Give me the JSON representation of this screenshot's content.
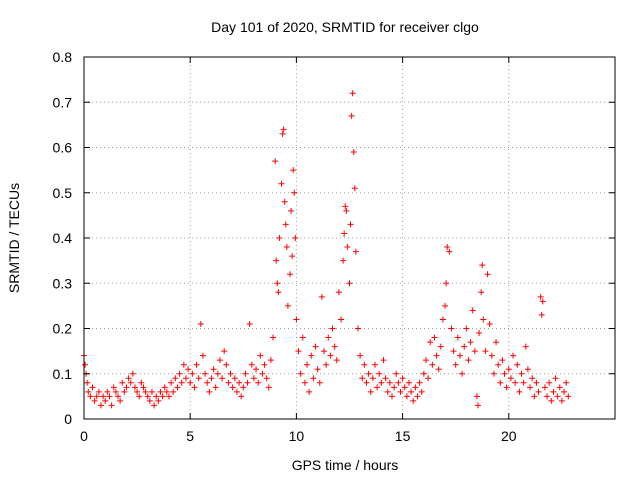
{
  "chart_data": {
    "type": "scatter",
    "title": "Day 101 of 2020, SRMTID for receiver clgo",
    "xlabel": "GPS time / hours",
    "ylabel": "SRMTID / TECUs",
    "xlim": [
      0,
      25
    ],
    "ylim": [
      0,
      0.8
    ],
    "xticks": [
      0,
      5,
      10,
      15,
      20
    ],
    "yticks": [
      0,
      0.1,
      0.2,
      0.3,
      0.4,
      0.5,
      0.6,
      0.7,
      0.8
    ],
    "grid": true,
    "marker": "+",
    "marker_color": "#ff0000",
    "series": [
      {
        "name": "SRMTID",
        "points": [
          [
            0.0,
            0.14
          ],
          [
            0.05,
            0.12
          ],
          [
            0.1,
            0.1
          ],
          [
            0.15,
            0.08
          ],
          [
            0.2,
            0.06
          ],
          [
            0.3,
            0.05
          ],
          [
            0.4,
            0.07
          ],
          [
            0.5,
            0.04
          ],
          [
            0.6,
            0.05
          ],
          [
            0.7,
            0.06
          ],
          [
            0.8,
            0.03
          ],
          [
            0.9,
            0.05
          ],
          [
            1.0,
            0.04
          ],
          [
            1.1,
            0.06
          ],
          [
            1.2,
            0.05
          ],
          [
            1.3,
            0.03
          ],
          [
            1.4,
            0.07
          ],
          [
            1.5,
            0.06
          ],
          [
            1.6,
            0.05
          ],
          [
            1.7,
            0.04
          ],
          [
            1.8,
            0.08
          ],
          [
            1.9,
            0.06
          ],
          [
            2.0,
            0.07
          ],
          [
            2.1,
            0.09
          ],
          [
            2.2,
            0.08
          ],
          [
            2.3,
            0.1
          ],
          [
            2.4,
            0.07
          ],
          [
            2.5,
            0.06
          ],
          [
            2.6,
            0.05
          ],
          [
            2.7,
            0.08
          ],
          [
            2.8,
            0.07
          ],
          [
            2.9,
            0.06
          ],
          [
            3.0,
            0.05
          ],
          [
            3.1,
            0.04
          ],
          [
            3.2,
            0.06
          ],
          [
            3.3,
            0.03
          ],
          [
            3.4,
            0.05
          ],
          [
            3.5,
            0.04
          ],
          [
            3.6,
            0.06
          ],
          [
            3.7,
            0.05
          ],
          [
            3.8,
            0.07
          ],
          [
            3.9,
            0.06
          ],
          [
            4.0,
            0.05
          ],
          [
            4.1,
            0.08
          ],
          [
            4.2,
            0.06
          ],
          [
            4.3,
            0.09
          ],
          [
            4.4,
            0.07
          ],
          [
            4.5,
            0.1
          ],
          [
            4.6,
            0.08
          ],
          [
            4.7,
            0.12
          ],
          [
            4.8,
            0.09
          ],
          [
            4.9,
            0.11
          ],
          [
            5.0,
            0.08
          ],
          [
            5.1,
            0.1
          ],
          [
            5.2,
            0.07
          ],
          [
            5.3,
            0.12
          ],
          [
            5.4,
            0.09
          ],
          [
            5.5,
            0.21
          ],
          [
            5.6,
            0.14
          ],
          [
            5.7,
            0.1
          ],
          [
            5.8,
            0.08
          ],
          [
            5.9,
            0.06
          ],
          [
            6.0,
            0.09
          ],
          [
            6.1,
            0.11
          ],
          [
            6.2,
            0.07
          ],
          [
            6.3,
            0.1
          ],
          [
            6.4,
            0.13
          ],
          [
            6.5,
            0.09
          ],
          [
            6.6,
            0.15
          ],
          [
            6.7,
            0.12
          ],
          [
            6.8,
            0.08
          ],
          [
            6.9,
            0.1
          ],
          [
            7.0,
            0.07
          ],
          [
            7.1,
            0.09
          ],
          [
            7.2,
            0.06
          ],
          [
            7.3,
            0.08
          ],
          [
            7.4,
            0.05
          ],
          [
            7.5,
            0.07
          ],
          [
            7.6,
            0.1
          ],
          [
            7.7,
            0.08
          ],
          [
            7.8,
            0.21
          ],
          [
            7.9,
            0.12
          ],
          [
            8.0,
            0.09
          ],
          [
            8.1,
            0.11
          ],
          [
            8.2,
            0.08
          ],
          [
            8.3,
            0.14
          ],
          [
            8.4,
            0.1
          ],
          [
            8.5,
            0.12
          ],
          [
            8.6,
            0.09
          ],
          [
            8.7,
            0.07
          ],
          [
            8.8,
            0.13
          ],
          [
            8.9,
            0.18
          ],
          [
            9.0,
            0.57
          ],
          [
            9.05,
            0.35
          ],
          [
            9.1,
            0.3
          ],
          [
            9.15,
            0.28
          ],
          [
            9.2,
            0.4
          ],
          [
            9.3,
            0.52
          ],
          [
            9.35,
            0.63
          ],
          [
            9.4,
            0.64
          ],
          [
            9.45,
            0.48
          ],
          [
            9.5,
            0.43
          ],
          [
            9.55,
            0.38
          ],
          [
            9.6,
            0.25
          ],
          [
            9.7,
            0.32
          ],
          [
            9.75,
            0.46
          ],
          [
            9.8,
            0.36
          ],
          [
            9.85,
            0.55
          ],
          [
            9.9,
            0.5
          ],
          [
            9.95,
            0.4
          ],
          [
            10.0,
            0.22
          ],
          [
            10.1,
            0.15
          ],
          [
            10.2,
            0.1
          ],
          [
            10.3,
            0.18
          ],
          [
            10.4,
            0.08
          ],
          [
            10.5,
            0.12
          ],
          [
            10.6,
            0.06
          ],
          [
            10.7,
            0.14
          ],
          [
            10.8,
            0.09
          ],
          [
            10.9,
            0.16
          ],
          [
            11.0,
            0.11
          ],
          [
            11.1,
            0.08
          ],
          [
            11.2,
            0.27
          ],
          [
            11.3,
            0.15
          ],
          [
            11.4,
            0.12
          ],
          [
            11.5,
            0.18
          ],
          [
            11.6,
            0.14
          ],
          [
            11.7,
            0.2
          ],
          [
            11.8,
            0.16
          ],
          [
            11.9,
            0.13
          ],
          [
            12.0,
            0.28
          ],
          [
            12.1,
            0.22
          ],
          [
            12.2,
            0.35
          ],
          [
            12.25,
            0.41
          ],
          [
            12.3,
            0.47
          ],
          [
            12.35,
            0.46
          ],
          [
            12.4,
            0.38
          ],
          [
            12.5,
            0.3
          ],
          [
            12.55,
            0.43
          ],
          [
            12.6,
            0.67
          ],
          [
            12.65,
            0.72
          ],
          [
            12.7,
            0.59
          ],
          [
            12.75,
            0.51
          ],
          [
            12.8,
            0.37
          ],
          [
            12.9,
            0.2
          ],
          [
            13.0,
            0.14
          ],
          [
            13.1,
            0.09
          ],
          [
            13.2,
            0.12
          ],
          [
            13.3,
            0.08
          ],
          [
            13.4,
            0.1
          ],
          [
            13.5,
            0.06
          ],
          [
            13.6,
            0.09
          ],
          [
            13.7,
            0.12
          ],
          [
            13.8,
            0.07
          ],
          [
            13.9,
            0.1
          ],
          [
            14.0,
            0.08
          ],
          [
            14.1,
            0.13
          ],
          [
            14.2,
            0.09
          ],
          [
            14.3,
            0.06
          ],
          [
            14.4,
            0.08
          ],
          [
            14.5,
            0.05
          ],
          [
            14.6,
            0.07
          ],
          [
            14.7,
            0.1
          ],
          [
            14.8,
            0.08
          ],
          [
            14.9,
            0.06
          ],
          [
            15.0,
            0.09
          ],
          [
            15.1,
            0.07
          ],
          [
            15.2,
            0.05
          ],
          [
            15.3,
            0.08
          ],
          [
            15.4,
            0.06
          ],
          [
            15.5,
            0.04
          ],
          [
            15.6,
            0.07
          ],
          [
            15.7,
            0.05
          ],
          [
            15.8,
            0.08
          ],
          [
            15.9,
            0.06
          ],
          [
            16.0,
            0.1
          ],
          [
            16.1,
            0.13
          ],
          [
            16.2,
            0.09
          ],
          [
            16.3,
            0.17
          ],
          [
            16.4,
            0.12
          ],
          [
            16.5,
            0.18
          ],
          [
            16.6,
            0.14
          ],
          [
            16.7,
            0.11
          ],
          [
            16.8,
            0.16
          ],
          [
            16.9,
            0.22
          ],
          [
            17.0,
            0.25
          ],
          [
            17.05,
            0.3
          ],
          [
            17.1,
            0.38
          ],
          [
            17.2,
            0.37
          ],
          [
            17.3,
            0.2
          ],
          [
            17.4,
            0.15
          ],
          [
            17.5,
            0.12
          ],
          [
            17.6,
            0.18
          ],
          [
            17.7,
            0.14
          ],
          [
            17.8,
            0.1
          ],
          [
            17.9,
            0.16
          ],
          [
            18.0,
            0.2
          ],
          [
            18.1,
            0.13
          ],
          [
            18.2,
            0.17
          ],
          [
            18.3,
            0.24
          ],
          [
            18.4,
            0.15
          ],
          [
            18.5,
            0.05
          ],
          [
            18.55,
            0.03
          ],
          [
            18.6,
            0.19
          ],
          [
            18.7,
            0.28
          ],
          [
            18.75,
            0.34
          ],
          [
            18.8,
            0.22
          ],
          [
            18.9,
            0.15
          ],
          [
            19.0,
            0.32
          ],
          [
            19.1,
            0.21
          ],
          [
            19.2,
            0.14
          ],
          [
            19.3,
            0.1
          ],
          [
            19.4,
            0.17
          ],
          [
            19.5,
            0.12
          ],
          [
            19.6,
            0.08
          ],
          [
            19.7,
            0.13
          ],
          [
            19.8,
            0.1
          ],
          [
            19.9,
            0.07
          ],
          [
            20.0,
            0.11
          ],
          [
            20.1,
            0.09
          ],
          [
            20.2,
            0.14
          ],
          [
            20.3,
            0.08
          ],
          [
            20.4,
            0.12
          ],
          [
            20.5,
            0.06
          ],
          [
            20.6,
            0.1
          ],
          [
            20.7,
            0.08
          ],
          [
            20.8,
            0.16
          ],
          [
            20.9,
            0.11
          ],
          [
            21.0,
            0.07
          ],
          [
            21.1,
            0.09
          ],
          [
            21.2,
            0.05
          ],
          [
            21.3,
            0.08
          ],
          [
            21.4,
            0.06
          ],
          [
            21.5,
            0.27
          ],
          [
            21.55,
            0.23
          ],
          [
            21.6,
            0.26
          ],
          [
            21.7,
            0.07
          ],
          [
            21.8,
            0.05
          ],
          [
            21.9,
            0.08
          ],
          [
            22.0,
            0.04
          ],
          [
            22.1,
            0.06
          ],
          [
            22.2,
            0.09
          ],
          [
            22.3,
            0.05
          ],
          [
            22.4,
            0.07
          ],
          [
            22.5,
            0.04
          ],
          [
            22.6,
            0.06
          ],
          [
            22.7,
            0.08
          ],
          [
            22.8,
            0.05
          ]
        ]
      }
    ]
  }
}
